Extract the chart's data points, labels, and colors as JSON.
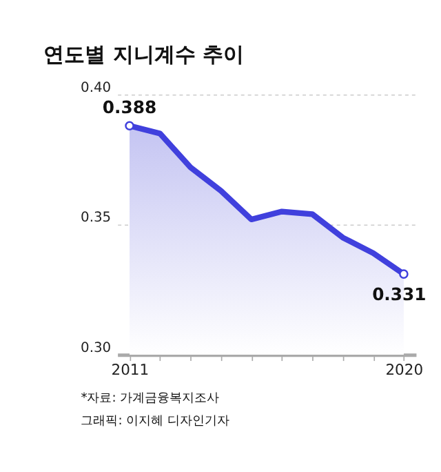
{
  "chart_data": {
    "type": "area",
    "title": "연도별 지니계수 추이",
    "categories": [
      "2011",
      null,
      null,
      null,
      null,
      null,
      null,
      null,
      null,
      "2020"
    ],
    "series": [
      {
        "color": "#4040dd",
        "values": [
          0.388,
          0.385,
          0.372,
          0.363,
          0.352,
          0.355,
          0.354,
          0.345,
          0.339,
          0.331
        ],
        "value_labels": [
          "0.388",
          null,
          null,
          null,
          null,
          null,
          null,
          null,
          null,
          "0.331"
        ]
      }
    ],
    "ylim": [
      0.3,
      0.4
    ],
    "yticks": [
      {
        "value": 0.3,
        "label": "0.30"
      },
      0.35,
      {
        "value": 0.4,
        "label": "0.40"
      }
    ],
    "grid": "y",
    "annotations": [
      "*자료: 가계금융복지조사",
      "그래픽: 이지혜 디자인기자"
    ]
  }
}
